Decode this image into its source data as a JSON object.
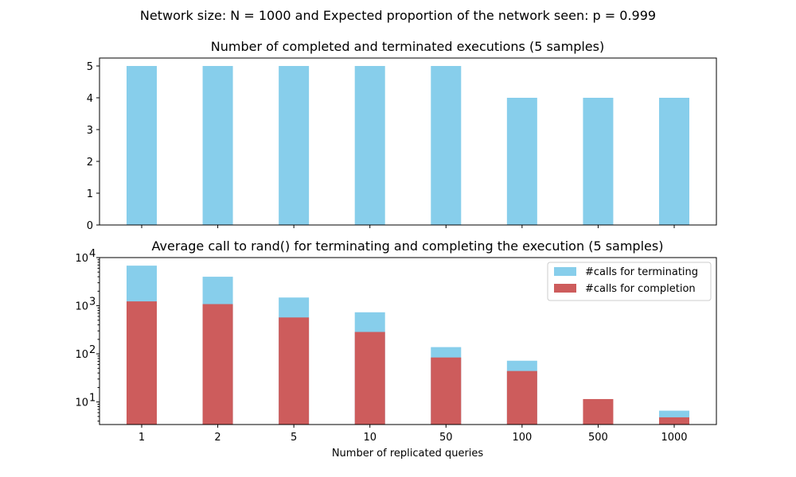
{
  "suptitle": "Network size: N = 1000 and Expected proportion of the network seen: p = 0.999",
  "chart_data": [
    {
      "type": "bar",
      "title": "Number of completed and terminated executions (5 samples)",
      "categories": [
        "1",
        "2",
        "5",
        "10",
        "50",
        "100",
        "500",
        "1000"
      ],
      "values": [
        5,
        5,
        5,
        5,
        5,
        4,
        4,
        4
      ],
      "color": "#87ceeb",
      "ylim": [
        0,
        5.25
      ],
      "yticks": [
        0,
        1,
        2,
        3,
        4,
        5
      ],
      "ytick_labels": [
        "0",
        "1",
        "2",
        "3",
        "4",
        "5"
      ],
      "xlabel": "",
      "ylabel": ""
    },
    {
      "type": "bar",
      "title": "Average call to rand() for terminating and completing the execution (5 samples)",
      "categories": [
        "1",
        "2",
        "5",
        "10",
        "50",
        "100",
        "500",
        "1000"
      ],
      "yscale": "log",
      "ylim": [
        3.4,
        10000
      ],
      "yticks": [
        10,
        100,
        1000,
        10000
      ],
      "ytick_labels": [
        "10",
        "10",
        "10",
        "10"
      ],
      "ytick_exponents": [
        "1",
        "2",
        "3",
        "4"
      ],
      "xlabel": "Number of replicated queries",
      "ylabel": "",
      "legend": "top-right",
      "series": [
        {
          "name": "#calls for terminating",
          "color": "#87ceeb",
          "values": [
            6800,
            4000,
            1480,
            730,
            138,
            72,
            null,
            6.6
          ]
        },
        {
          "name": "#calls for completion",
          "color": "#cd5c5c",
          "values": [
            1230,
            1080,
            570,
            285,
            84,
            44,
            11.5,
            4.8
          ]
        }
      ]
    }
  ]
}
